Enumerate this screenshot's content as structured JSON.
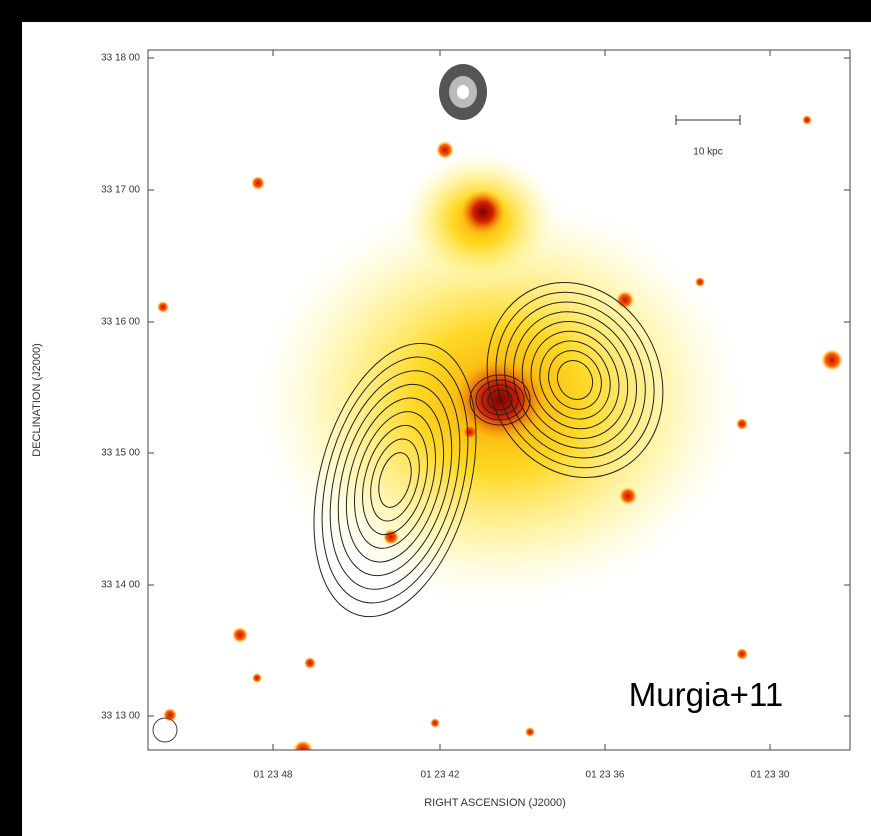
{
  "figure": {
    "y_axis_label": "DECLINATION (J2000)",
    "x_axis_label": "RIGHT ASCENSION (J2000)",
    "y_tick_labels": [
      "33 18 00",
      "33 17 00",
      "33 16 00",
      "33 15 00",
      "33 14 00",
      "33 13 00"
    ],
    "x_tick_labels": [
      "01 23 48",
      "01 23 42",
      "01 23 36",
      "01 23 30"
    ],
    "scale_bar_label": "10 kpc",
    "credit": "Murgia+11"
  }
}
